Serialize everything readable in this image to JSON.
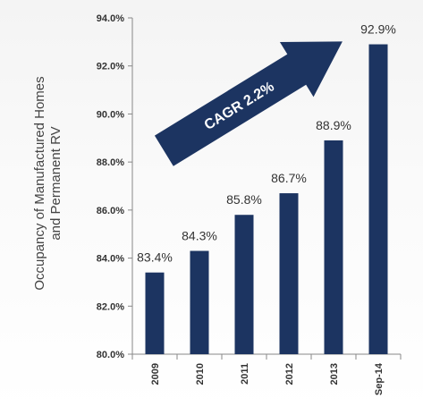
{
  "chart_data": {
    "type": "bar",
    "categories": [
      "2009",
      "2010",
      "2011",
      "2012",
      "2013",
      "Sep-14"
    ],
    "values": [
      83.4,
      84.3,
      85.8,
      86.7,
      88.9,
      92.9
    ],
    "value_labels": [
      "83.4%",
      "84.3%",
      "85.8%",
      "86.7%",
      "88.9%",
      "92.9%"
    ],
    "ylabel_line1": "Occupancy of Manufactured Homes",
    "ylabel_line2": "and Permanent RV",
    "ylim": [
      80.0,
      94.0
    ],
    "yticks": [
      80.0,
      82.0,
      84.0,
      86.0,
      88.0,
      90.0,
      92.0,
      94.0
    ],
    "ytick_labels": [
      "80.0%",
      "82.0%",
      "84.0%",
      "86.0%",
      "88.0%",
      "90.0%",
      "92.0%",
      "94.0%"
    ],
    "grid": false,
    "annotation": "CAGR 2.2%",
    "colors": {
      "bar": "#1c3461",
      "arrow": "#1c3461",
      "arrow_text": "#ffffff",
      "axis": "#888888",
      "text": "#333333"
    }
  }
}
